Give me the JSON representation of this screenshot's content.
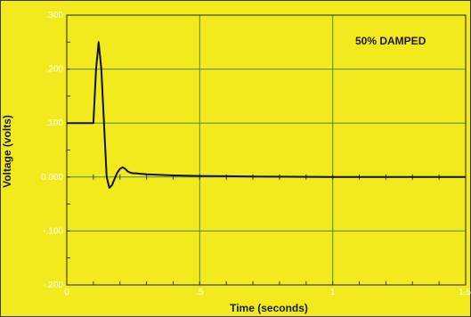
{
  "chart_data": {
    "type": "line",
    "title": "",
    "annotation": "50% DAMPED",
    "xlabel": "Time (seconds)",
    "ylabel": "Voltage (volts)",
    "xlim": [
      0,
      1.5
    ],
    "ylim": [
      -0.2,
      0.3
    ],
    "x_ticks": [
      0,
      0.5,
      1,
      1.5
    ],
    "x_tick_labels": [
      "0",
      ".5",
      "1",
      "1.5"
    ],
    "y_ticks": [
      0.3,
      0.2,
      0.1,
      0.0,
      -0.1,
      -0.2
    ],
    "y_tick_labels": [
      ".300",
      ".200",
      ".100",
      "0.000",
      "-.100",
      "-.200"
    ],
    "grid": true,
    "series": [
      {
        "x": [
          0,
          0.1,
          0.11,
          0.12,
          0.13,
          0.14,
          0.15,
          0.16,
          0.17,
          0.18,
          0.19,
          0.2,
          0.21,
          0.22,
          0.23,
          0.24,
          0.25,
          0.26,
          0.28,
          0.3,
          0.35,
          0.4,
          0.5,
          0.7,
          1.0,
          1.5
        ],
        "y": [
          0.1,
          0.1,
          0.2,
          0.25,
          0.2,
          0.1,
          0.0,
          -0.02,
          -0.015,
          -0.003,
          0.008,
          0.015,
          0.018,
          0.015,
          0.01,
          0.008,
          0.007,
          0.007,
          0.006,
          0.005,
          0.004,
          0.003,
          0.002,
          0.001,
          0.0,
          0.0
        ]
      }
    ],
    "colors": {
      "background": "#f2ea1c",
      "grid": "#4a8a3a",
      "line": "#111111",
      "tick_label": "#ffffff"
    }
  }
}
